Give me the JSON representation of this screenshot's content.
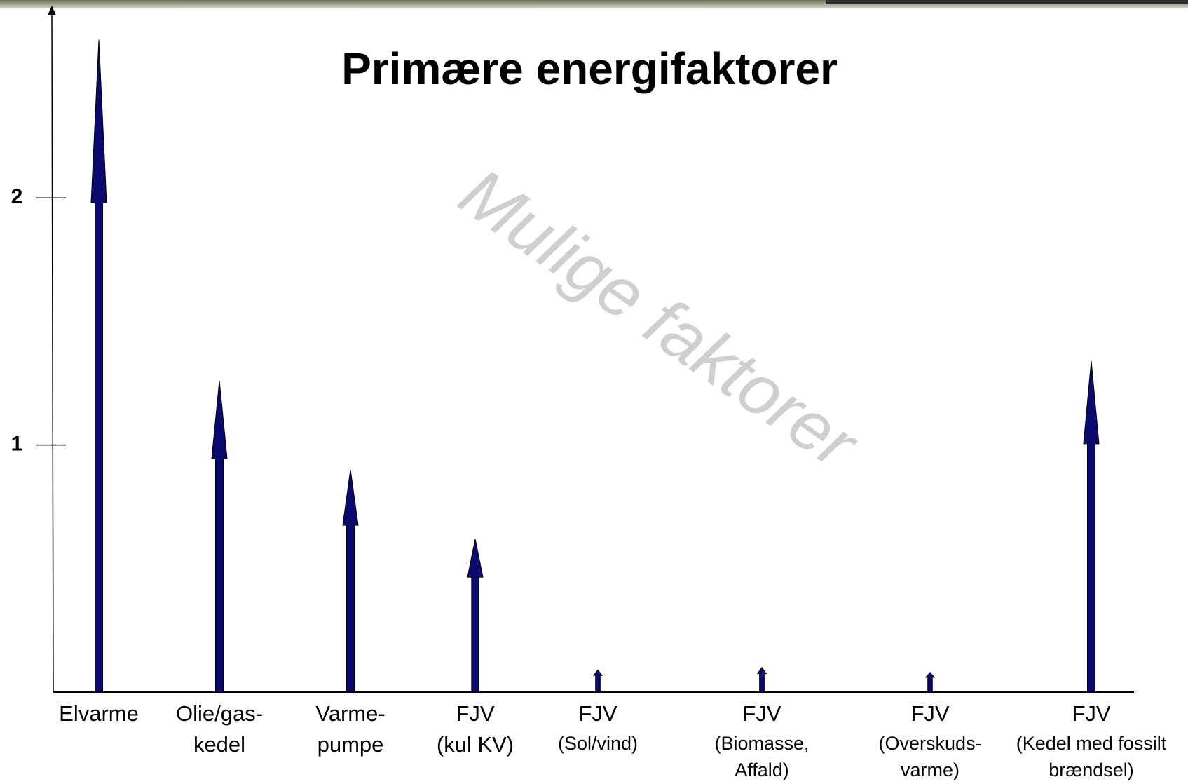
{
  "chart_data": {
    "type": "arrow",
    "title": "Primære energifaktorer",
    "annotation": "Mulige faktorer",
    "categories": [
      "Elvarme",
      "Olie/gas-\nkedel",
      "Varme-\npumpe",
      "FJV\n(kul KV)",
      "FJV\n(Sol/vind)",
      "FJV\n(Biomasse,\nAffald)",
      "FJV\n(Overskuds-\nvarme)",
      "FJV\n(Kedel med fossilt\nbrændsel)"
    ],
    "values": [
      2.64,
      1.26,
      0.9,
      0.62,
      0.09,
      0.1,
      0.08,
      1.34
    ],
    "color": "#0a0a6e",
    "ylim": [
      0,
      2.77
    ],
    "yticks": [
      1,
      2
    ]
  }
}
